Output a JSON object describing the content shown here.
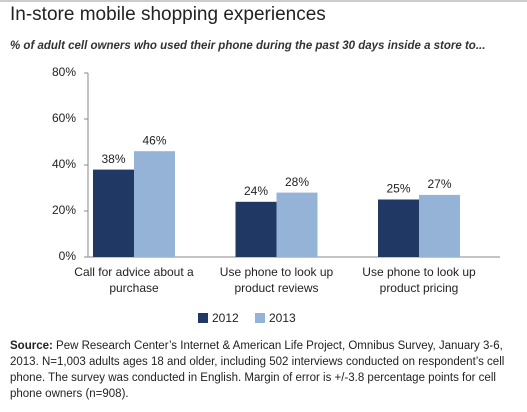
{
  "chart_data": {
    "type": "bar",
    "title": "In-store mobile shopping experiences",
    "subtitle": "% of adult cell owners who used their phone during the past 30 days inside a store to...",
    "categories": [
      "Call for advice about a purchase",
      "Use phone to look up product reviews",
      "Use phone to look up product pricing"
    ],
    "series": [
      {
        "name": "2012",
        "color": "#1f3864",
        "values": [
          38,
          24,
          25
        ],
        "value_labels": [
          "38%",
          "24%",
          "25%"
        ]
      },
      {
        "name": "2013",
        "color": "#95b3d7",
        "values": [
          46,
          28,
          27
        ],
        "value_labels": [
          "46%",
          "28%",
          "27%"
        ]
      }
    ],
    "ylim": [
      0,
      80
    ],
    "yticks": [
      {
        "value": 0,
        "label": "0%"
      },
      {
        "value": 20,
        "label": "20%"
      },
      {
        "value": 40,
        "label": "40%"
      },
      {
        "value": 60,
        "label": "60%"
      },
      {
        "value": 80,
        "label": "80%"
      }
    ],
    "grid": false,
    "legend": "bottom",
    "source_label": "Source:",
    "source": "Pew Research Center’s Internet & American Life Project, Omnibus Survey, January 3-6, 2013. N=1,003 adults ages 18 and older, including 502 interviews conducted on respondent’s cell phone. The survey was conducted in English. Margin of error is +/-3.8 percentage points for cell phone owners (n=908)."
  }
}
